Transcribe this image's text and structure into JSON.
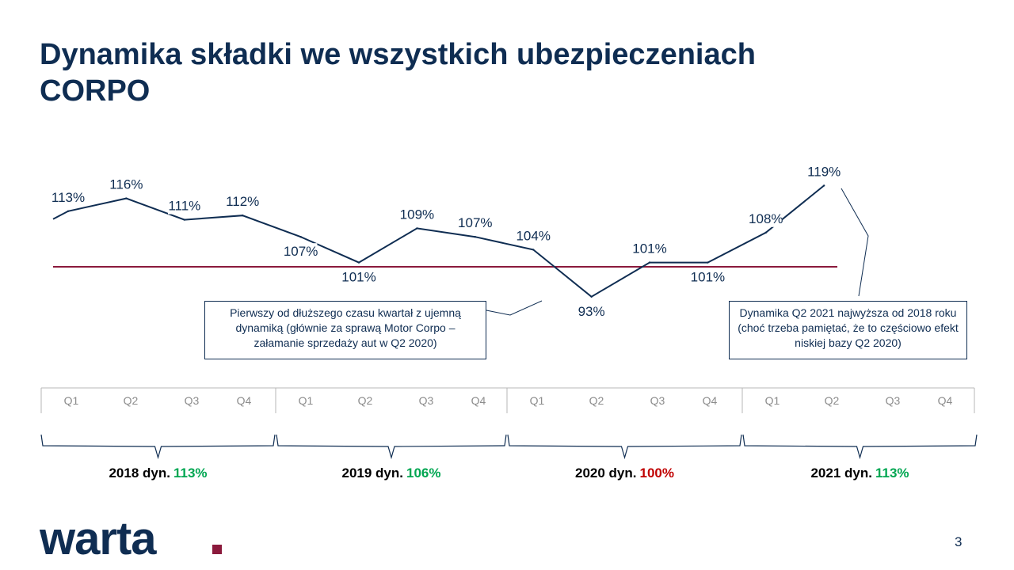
{
  "title": {
    "line1": "Dynamika składki we wszystkich ubezpieczeniach",
    "line2": "CORPO"
  },
  "chart_data": {
    "type": "line",
    "x": [
      "2018 Q1",
      "2018 Q2",
      "2018 Q3",
      "2018 Q4",
      "2019 Q1",
      "2019 Q2",
      "2019 Q3",
      "2019 Q4",
      "2020 Q1",
      "2020 Q2",
      "2020 Q3",
      "2020 Q4",
      "2021 Q1",
      "2021 Q2"
    ],
    "series": [
      {
        "values": [
          113,
          116,
          111,
          112,
          107,
          101,
          109,
          107,
          104,
          93,
          101,
          101,
          108,
          119
        ]
      }
    ],
    "data_labels": [
      "113%",
      "116%",
      "111%",
      "112%",
      "107%",
      "101%",
      "109%",
      "107%",
      "104%",
      "93%",
      "101%",
      "101%",
      "108%",
      "119%"
    ],
    "reference_line": 100,
    "quarter_ticks": [
      "Q1",
      "Q2",
      "Q3",
      "Q4"
    ],
    "years": [
      {
        "label": "2018 dyn.",
        "value": "113%",
        "color": "#00a651"
      },
      {
        "label": "2019 dyn.",
        "value": "106%",
        "color": "#00a651"
      },
      {
        "label": "2020 dyn.",
        "value": "100%",
        "color": "#c00000"
      },
      {
        "label": "2021 dyn.",
        "value": "113%",
        "color": "#00a651"
      }
    ],
    "line_color": "#0f2d52",
    "reference_color": "#8b1a3c",
    "grid": false
  },
  "callouts": {
    "left": "Pierwszy od dłuższego  czasu kwartał z ujemną dynamiką (głównie za sprawą Motor Corpo – załamanie sprzedaży aut w Q2 2020)",
    "right": "Dynamika Q2 2021 najwyższa  od 2018 roku (choć trzeba pamiętać, że to częściowo efekt niskiej bazy Q2 2020)"
  },
  "logo": {
    "text": "warta.",
    "color": "#0f2d52",
    "dot_color": "#8b1a3c"
  },
  "page_number": "3"
}
